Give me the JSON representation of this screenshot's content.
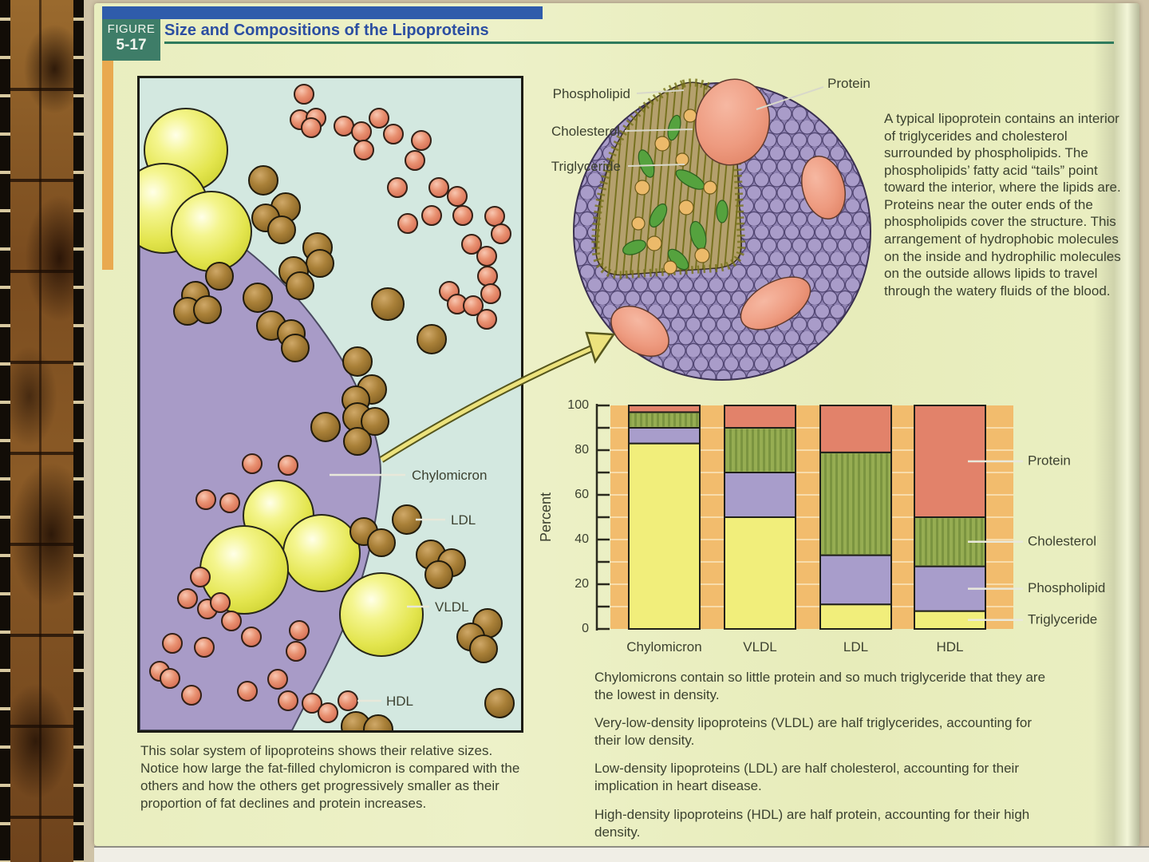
{
  "header": {
    "figure_kicker": "FIGURE",
    "figure_number": "5-17",
    "title": "Size and Compositions of the Lipoproteins",
    "colors": {
      "green_box": "#3e7d68",
      "blue_bar": "#2f5cab",
      "orange_strip": "#e9a94f",
      "title_text": "#2b4ea2",
      "green_rule": "#2e7a5c"
    }
  },
  "structure_diagram": {
    "labels": {
      "phospholipid": "Phospholipid",
      "cholesterol": "Cholesterol",
      "triglyceride": "Triglyceride",
      "protein": "Protein"
    },
    "description": "A typical lipoprotein contains an interior of triglycerides and cholesterol surrounded by phospholipids. The phospholipids’ fatty acid “tails” point toward the interior, where the lipids are. Proteins near the outer ends of the phospholipids cover the structure. This arrangement of hydrophobic molecules on the inside and hydrophilic molecules on the outside allows lipids to travel through the watery fluids of the blood."
  },
  "size_panel": {
    "labels": {
      "chylomicron": "Chylomicron",
      "ldl": "LDL",
      "vldl": "VLDL",
      "hdl": "HDL"
    },
    "caption": "This solar system of lipoproteins shows their relative sizes. Notice how large the fat-filled chylomicron is compared with the others and how the others get progressively smaller as their proportion of fat declines and protein increases.",
    "colors": {
      "panel_bg": "#d3e8e0",
      "chylomicron_fill": "#a89bc7",
      "vldl_fill": "#e9eb55",
      "ldl_fill": "#a17a33",
      "hdl_fill": "#e2836a"
    },
    "spheres": {
      "vldl": [
        [
          58,
          90,
          52
        ],
        [
          30,
          163,
          56
        ],
        [
          90,
          192,
          50
        ],
        [
          174,
          548,
          44
        ],
        [
          228,
          595,
          48
        ],
        [
          131,
          616,
          55
        ],
        [
          303,
          672,
          52
        ]
      ],
      "ldl": [
        [
          155,
          128,
          18
        ],
        [
          183,
          162,
          18
        ],
        [
          158,
          175,
          17
        ],
        [
          178,
          190,
          17
        ],
        [
          223,
          212,
          18
        ],
        [
          226,
          232,
          17
        ],
        [
          193,
          242,
          18
        ],
        [
          201,
          260,
          17
        ],
        [
          148,
          275,
          18
        ],
        [
          100,
          248,
          17
        ],
        [
          70,
          272,
          17
        ],
        [
          60,
          292,
          17
        ],
        [
          85,
          290,
          17
        ],
        [
          165,
          310,
          18
        ],
        [
          190,
          320,
          17
        ],
        [
          195,
          338,
          17
        ],
        [
          311,
          283,
          20
        ],
        [
          366,
          327,
          18
        ],
        [
          273,
          355,
          18
        ],
        [
          291,
          390,
          18
        ],
        [
          271,
          403,
          17
        ],
        [
          233,
          437,
          18
        ],
        [
          273,
          425,
          18
        ],
        [
          295,
          430,
          17
        ],
        [
          273,
          455,
          17
        ],
        [
          335,
          553,
          18
        ],
        [
          281,
          568,
          17
        ],
        [
          303,
          582,
          17
        ],
        [
          365,
          597,
          18
        ],
        [
          391,
          607,
          17
        ],
        [
          375,
          622,
          17
        ],
        [
          436,
          683,
          18
        ],
        [
          415,
          700,
          17
        ],
        [
          431,
          715,
          17
        ],
        [
          451,
          783,
          18
        ],
        [
          271,
          812,
          18
        ],
        [
          299,
          816,
          18
        ]
      ],
      "hdl": [
        [
          206,
          20
        ],
        [
          201,
          52
        ],
        [
          221,
          50
        ],
        [
          215,
          62
        ],
        [
          256,
          60
        ],
        [
          278,
          67
        ],
        [
          300,
          50
        ],
        [
          318,
          70
        ],
        [
          281,
          90
        ],
        [
          353,
          78
        ],
        [
          345,
          103
        ],
        [
          323,
          137
        ],
        [
          375,
          137
        ],
        [
          398,
          148
        ],
        [
          366,
          172
        ],
        [
          336,
          182
        ],
        [
          405,
          172
        ],
        [
          445,
          173
        ],
        [
          453,
          195
        ],
        [
          416,
          208
        ],
        [
          435,
          223
        ],
        [
          436,
          248
        ],
        [
          388,
          267
        ],
        [
          398,
          283
        ],
        [
          418,
          285
        ],
        [
          440,
          270
        ],
        [
          435,
          302
        ],
        [
          141,
          483
        ],
        [
          186,
          485
        ],
        [
          83,
          528
        ],
        [
          113,
          532
        ],
        [
          76,
          625
        ],
        [
          60,
          652
        ],
        [
          85,
          665
        ],
        [
          101,
          657
        ],
        [
          115,
          680
        ],
        [
          41,
          708
        ],
        [
          81,
          713
        ],
        [
          140,
          700
        ],
        [
          200,
          692
        ],
        [
          196,
          718
        ],
        [
          25,
          743
        ],
        [
          38,
          752
        ],
        [
          65,
          773
        ],
        [
          135,
          768
        ],
        [
          173,
          753
        ],
        [
          186,
          780
        ],
        [
          216,
          783
        ],
        [
          236,
          795
        ],
        [
          261,
          780
        ]
      ]
    }
  },
  "chart_data": {
    "type": "bar",
    "stacked": true,
    "title": "",
    "xlabel": "",
    "ylabel": "Percent",
    "ylim": [
      0,
      100
    ],
    "yticks": [
      0,
      20,
      40,
      60,
      80,
      100
    ],
    "grid": true,
    "legend_position": "right",
    "plot_bg": "#f2bc6d",
    "grid_color": "#f8dcab",
    "categories": [
      "Chylomicron",
      "VLDL",
      "LDL",
      "HDL"
    ],
    "series": [
      {
        "name": "Triglyceride",
        "color": "#f1ee7b",
        "values": [
          83,
          50,
          11,
          8
        ]
      },
      {
        "name": "Phospholipid",
        "color": "#a89dcb",
        "values": [
          7,
          20,
          22,
          20
        ]
      },
      {
        "name": "Cholesterol",
        "color": "#96ad52",
        "stripe": "#7b9440",
        "values": [
          7,
          20,
          46,
          22
        ]
      },
      {
        "name": "Protein",
        "color": "#e2826a",
        "values": [
          3,
          10,
          21,
          50
        ]
      }
    ],
    "legend_order": [
      "Protein",
      "Cholesterol",
      "Phospholipid",
      "Triglyceride"
    ]
  },
  "notes": [
    "Chylomicrons contain so little protein and so much triglyceride that they are the lowest in density.",
    "Very-low-density lipoproteins (VLDL) are half triglycerides, accounting for their low density.",
    "Low-density lipoproteins (LDL) are half cholesterol, accounting for their implication in heart disease.",
    "High-density lipoproteins (HDL) are half protein, accounting for their high density."
  ]
}
